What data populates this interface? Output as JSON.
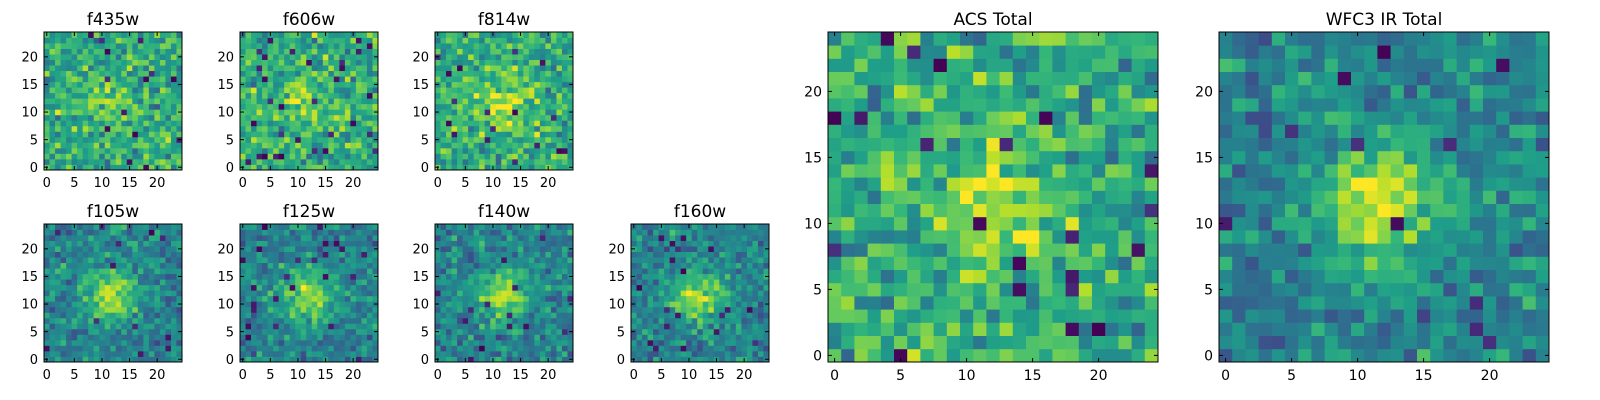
{
  "chart_data": [
    {
      "type": "heatmap",
      "title": "f435w",
      "size": 25,
      "xticks": [
        0,
        5,
        10,
        15,
        20
      ],
      "yticks": [
        0,
        5,
        10,
        15,
        20
      ],
      "source_max_fraction": 0.25
    },
    {
      "type": "heatmap",
      "title": "f606w",
      "size": 25,
      "xticks": [
        0,
        5,
        10,
        15,
        20
      ],
      "yticks": [
        0,
        5,
        10,
        15,
        20
      ],
      "source_max_fraction": 0.35
    },
    {
      "type": "heatmap",
      "title": "f814w",
      "size": 25,
      "xticks": [
        0,
        5,
        10,
        15,
        20
      ],
      "yticks": [
        0,
        5,
        10,
        15,
        20
      ],
      "source_max_fraction": 0.55
    },
    {
      "type": "heatmap",
      "title": "f105w",
      "size": 25,
      "xticks": [
        0,
        5,
        10,
        15,
        20
      ],
      "yticks": [
        0,
        5,
        10,
        15,
        20
      ],
      "source_max_fraction": 0.8
    },
    {
      "type": "heatmap",
      "title": "f125w",
      "size": 25,
      "xticks": [
        0,
        5,
        10,
        15,
        20
      ],
      "yticks": [
        0,
        5,
        10,
        15,
        20
      ],
      "source_max_fraction": 0.8
    },
    {
      "type": "heatmap",
      "title": "f140w",
      "size": 25,
      "xticks": [
        0,
        5,
        10,
        15,
        20
      ],
      "yticks": [
        0,
        5,
        10,
        15,
        20
      ],
      "source_max_fraction": 0.75
    },
    {
      "type": "heatmap",
      "title": "f160w",
      "size": 25,
      "xticks": [
        0,
        5,
        10,
        15,
        20
      ],
      "yticks": [
        0,
        5,
        10,
        15,
        20
      ],
      "source_max_fraction": 0.8
    },
    {
      "type": "heatmap",
      "title": "ACS Total",
      "size": 25,
      "xticks": [
        0,
        5,
        10,
        15,
        20
      ],
      "yticks": [
        0,
        5,
        10,
        15,
        20
      ],
      "source_max_fraction": 0.5
    },
    {
      "type": "heatmap",
      "title": "WFC3 IR Total",
      "size": 25,
      "xticks": [
        0,
        5,
        10,
        15,
        20
      ],
      "yticks": [
        0,
        5,
        10,
        15,
        20
      ],
      "source_max_fraction": 0.9
    }
  ],
  "colormap": "viridis",
  "colors": {
    "axes": "#000000",
    "background": "#ffffff"
  }
}
